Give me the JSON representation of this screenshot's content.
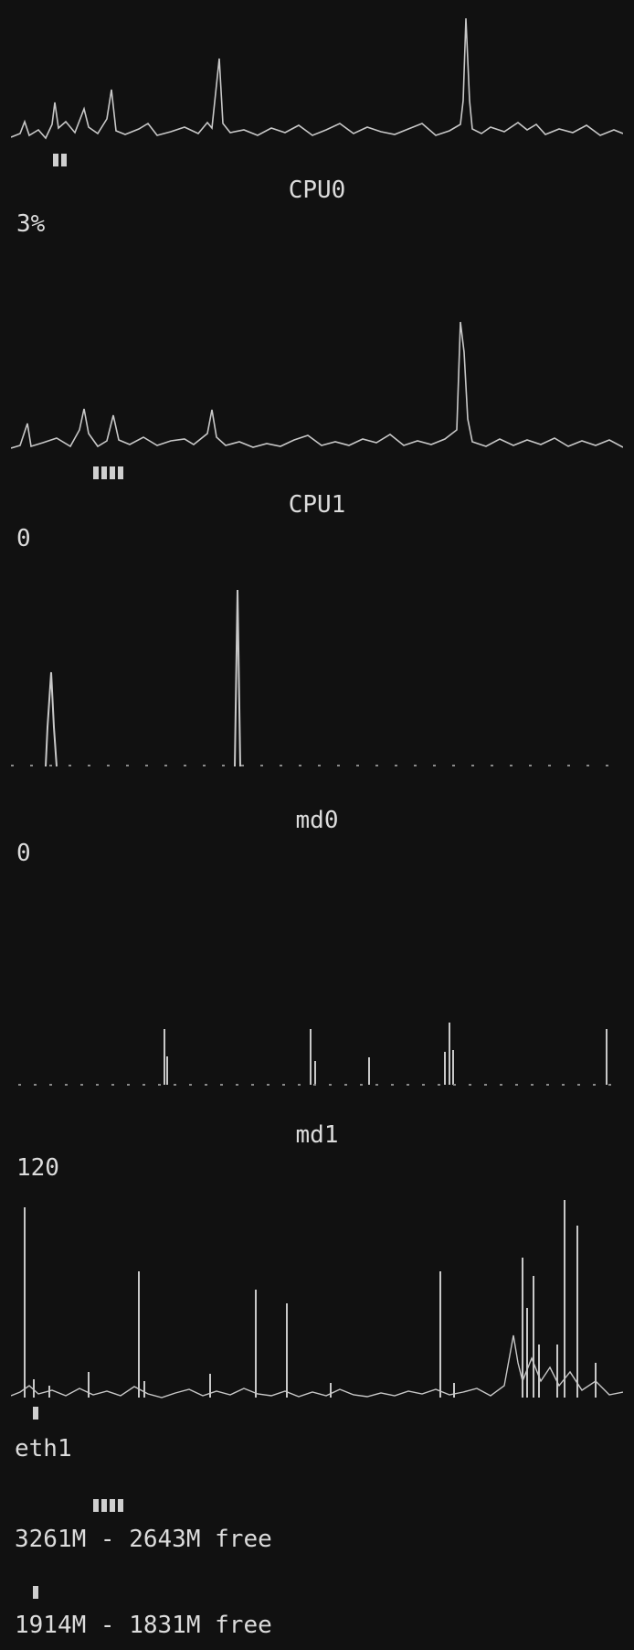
{
  "colors": {
    "background": "#111111",
    "trace": "#c8c8c8",
    "text": "#dcdcdc"
  },
  "panels": [
    {
      "title": "",
      "value": "",
      "load_blocks": 2,
      "trace_color": "#c8c8c8"
    },
    {
      "title": "CPU0",
      "value": "3%",
      "load_blocks": 4,
      "trace_color": "#c8c8c8"
    },
    {
      "title": "CPU1",
      "value": "0",
      "load_blocks": 0,
      "trace_color": "#c8c8c8"
    },
    {
      "title": "md0",
      "value": "0",
      "load_blocks": 0,
      "trace_color": "#c8c8c8"
    },
    {
      "title": "md1",
      "value": "120",
      "load_blocks": 0,
      "trace_color": "#c8c8c8"
    }
  ],
  "network": {
    "label": "eth1",
    "load_blocks": 1
  },
  "memory": {
    "text": "3261M - 2643M free",
    "load_blocks": 4
  },
  "swap": {
    "text": "1914M - 1831M free",
    "load_blocks": 1
  }
}
